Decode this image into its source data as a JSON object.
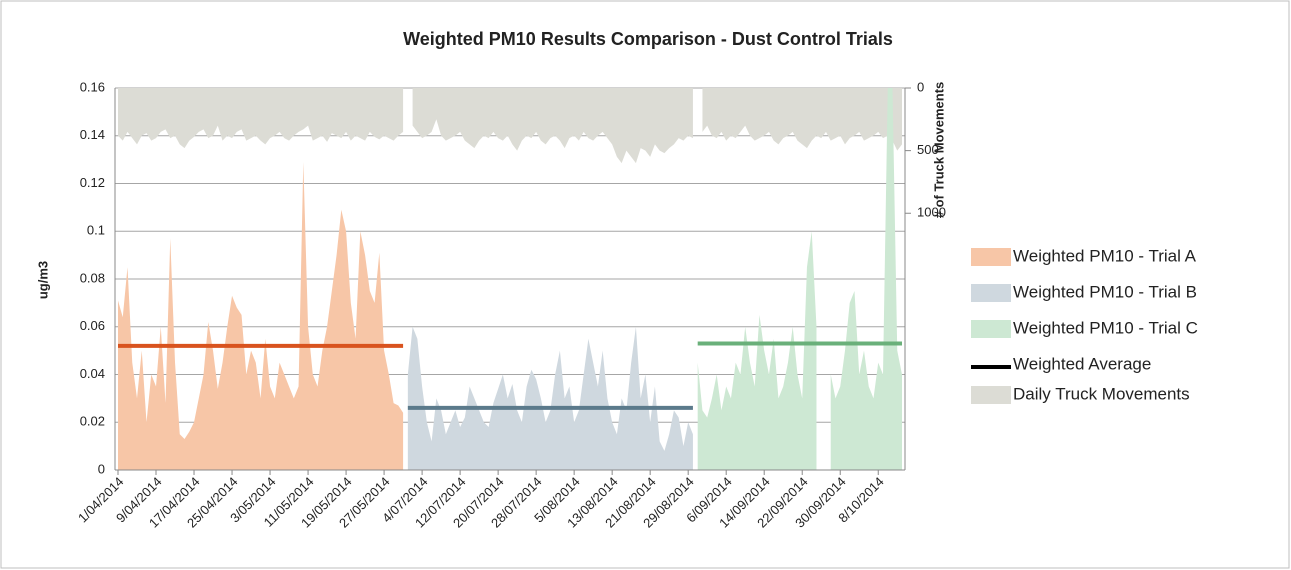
{
  "chart_data": {
    "type": "area",
    "title": "Weighted PM10 Results Comparison - Dust Control Trials",
    "ylabel": "ug/m3",
    "y2label": "# of Truck Movements",
    "ylim": [
      0,
      0.16
    ],
    "yticks": [
      0,
      0.02,
      0.04,
      0.06,
      0.08,
      0.1,
      0.12,
      0.14,
      0.16
    ],
    "y2lim": [
      0,
      3050
    ],
    "y2ticks": [
      0,
      500,
      1000
    ],
    "y2_reversed": true,
    "grid": true,
    "legend": "right",
    "categories": [
      "1/04/2014",
      null,
      null,
      null,
      null,
      null,
      null,
      null,
      "9/04/2014",
      null,
      null,
      null,
      null,
      null,
      null,
      null,
      "17/04/2014",
      null,
      null,
      null,
      null,
      null,
      null,
      null,
      "25/04/2014",
      null,
      null,
      null,
      null,
      null,
      null,
      null,
      "3/05/2014",
      null,
      null,
      null,
      null,
      null,
      null,
      null,
      "11/05/2014",
      null,
      null,
      null,
      null,
      null,
      null,
      null,
      "19/05/2014",
      null,
      null,
      null,
      null,
      null,
      null,
      null,
      "27/05/2014",
      null,
      null,
      null,
      null,
      null,
      null,
      null,
      "4/07/2014",
      null,
      null,
      null,
      null,
      null,
      null,
      null,
      "12/07/2014",
      null,
      null,
      null,
      null,
      null,
      null,
      null,
      "20/07/2014",
      null,
      null,
      null,
      null,
      null,
      null,
      null,
      "28/07/2014",
      null,
      null,
      null,
      null,
      null,
      null,
      null,
      "5/08/2014",
      null,
      null,
      null,
      null,
      null,
      null,
      null,
      "13/08/2014",
      null,
      null,
      null,
      null,
      null,
      null,
      null,
      "21/08/2014",
      null,
      null,
      null,
      null,
      null,
      null,
      null,
      "29/08/2014",
      null,
      null,
      null,
      null,
      null,
      null,
      null,
      "6/09/2014",
      null,
      null,
      null,
      null,
      null,
      null,
      null,
      "14/09/2014",
      null,
      null,
      null,
      null,
      null,
      null,
      null,
      "22/09/2014",
      null,
      null,
      null,
      null,
      null,
      null,
      null,
      "30/09/2014",
      null,
      null,
      null,
      null,
      null,
      null,
      null,
      "8/10/2014",
      null,
      null,
      null,
      null,
      null
    ],
    "average_legend": {
      "name": "Weighted Average",
      "color": "#000000"
    },
    "series": [
      {
        "name": "Weighted PM10 - Trial A",
        "color": "#f7c6a7",
        "average": 0.052,
        "average_color": "#d9531e",
        "values": [
          0.071,
          0.064,
          0.085,
          0.045,
          0.03,
          0.05,
          0.02,
          0.04,
          0.035,
          0.06,
          0.028,
          0.097,
          0.045,
          0.015,
          0.013,
          0.016,
          0.02,
          0.03,
          0.04,
          0.062,
          0.05,
          0.034,
          0.045,
          0.06,
          0.073,
          0.068,
          0.065,
          0.04,
          0.05,
          0.045,
          0.03,
          0.055,
          0.035,
          0.03,
          0.045,
          0.04,
          0.035,
          0.03,
          0.035,
          0.129,
          0.06,
          0.04,
          0.035,
          0.05,
          0.06,
          0.075,
          0.09,
          0.109,
          0.1,
          0.07,
          0.055,
          0.1,
          0.09,
          0.075,
          0.07,
          0.091,
          0.05,
          0.04,
          0.028,
          0.027,
          0.024,
          null,
          null,
          null,
          null,
          null,
          null,
          null,
          null,
          null,
          null,
          null,
          null,
          null,
          null,
          null,
          null,
          null,
          null,
          null,
          null,
          null,
          null,
          null,
          null,
          null,
          null,
          null,
          null,
          null,
          null,
          null,
          null,
          null,
          null,
          null,
          null,
          null,
          null,
          null,
          null,
          null,
          null,
          null,
          null,
          null,
          null,
          null,
          null,
          null,
          null,
          null,
          null,
          null,
          null,
          null,
          null,
          null,
          null,
          null,
          null,
          null,
          null,
          null,
          null,
          null,
          null,
          null,
          null,
          null,
          null,
          null,
          null,
          null,
          null,
          null,
          null,
          null,
          null,
          null,
          null,
          null,
          null,
          null,
          null,
          null,
          null,
          null,
          null,
          null,
          null,
          null,
          null,
          null,
          null,
          null,
          null,
          null,
          null,
          null,
          null,
          null,
          null,
          null,
          null,
          null
        ]
      },
      {
        "name": "Weighted PM10 - Trial B",
        "color": "#cfd8df",
        "average": 0.026,
        "average_color": "#5b7a8b",
        "values": [
          null,
          null,
          null,
          null,
          null,
          null,
          null,
          null,
          null,
          null,
          null,
          null,
          null,
          null,
          null,
          null,
          null,
          null,
          null,
          null,
          null,
          null,
          null,
          null,
          null,
          null,
          null,
          null,
          null,
          null,
          null,
          null,
          null,
          null,
          null,
          null,
          null,
          null,
          null,
          null,
          null,
          null,
          null,
          null,
          null,
          null,
          null,
          null,
          null,
          null,
          null,
          null,
          null,
          null,
          null,
          null,
          null,
          null,
          null,
          null,
          null,
          0.04,
          0.06,
          0.055,
          0.035,
          0.02,
          0.012,
          0.03,
          0.025,
          0.015,
          0.02,
          0.025,
          0.018,
          0.022,
          0.035,
          0.03,
          0.025,
          0.02,
          0.018,
          0.028,
          0.034,
          0.04,
          0.03,
          0.036,
          0.025,
          0.02,
          0.035,
          0.042,
          0.038,
          0.03,
          0.02,
          0.025,
          0.04,
          0.05,
          0.03,
          0.035,
          0.02,
          0.025,
          0.04,
          0.055,
          0.045,
          0.035,
          0.05,
          0.03,
          0.02,
          0.015,
          0.03,
          0.025,
          0.045,
          0.06,
          0.03,
          0.04,
          0.02,
          0.035,
          0.012,
          0.008,
          0.015,
          0.025,
          0.022,
          0.01,
          0.02,
          0.015,
          null,
          null,
          null,
          null,
          null,
          null,
          null,
          null,
          null,
          null,
          null,
          null,
          null,
          null,
          null,
          null,
          null,
          null,
          null,
          null,
          null,
          null,
          null,
          null,
          null,
          null,
          null,
          null,
          null,
          null,
          null,
          null,
          null,
          null,
          null,
          null,
          null,
          null,
          null,
          null,
          null,
          null,
          null,
          null
        ]
      },
      {
        "name": "Weighted PM10 - Trial C",
        "color": "#cde8d3",
        "average": 0.053,
        "average_color": "#6ab07a",
        "values": [
          null,
          null,
          null,
          null,
          null,
          null,
          null,
          null,
          null,
          null,
          null,
          null,
          null,
          null,
          null,
          null,
          null,
          null,
          null,
          null,
          null,
          null,
          null,
          null,
          null,
          null,
          null,
          null,
          null,
          null,
          null,
          null,
          null,
          null,
          null,
          null,
          null,
          null,
          null,
          null,
          null,
          null,
          null,
          null,
          null,
          null,
          null,
          null,
          null,
          null,
          null,
          null,
          null,
          null,
          null,
          null,
          null,
          null,
          null,
          null,
          null,
          null,
          null,
          null,
          null,
          null,
          null,
          null,
          null,
          null,
          null,
          null,
          null,
          null,
          null,
          null,
          null,
          null,
          null,
          null,
          null,
          null,
          null,
          null,
          null,
          null,
          null,
          null,
          null,
          null,
          null,
          null,
          null,
          null,
          null,
          null,
          null,
          null,
          null,
          null,
          null,
          null,
          null,
          null,
          null,
          null,
          null,
          null,
          null,
          null,
          null,
          null,
          null,
          null,
          null,
          null,
          null,
          null,
          null,
          null,
          null,
          null,
          0.045,
          0.025,
          0.022,
          0.03,
          0.04,
          0.025,
          0.035,
          0.03,
          0.045,
          0.04,
          0.06,
          0.045,
          0.035,
          0.065,
          0.05,
          0.04,
          0.055,
          0.03,
          0.035,
          0.045,
          0.06,
          0.04,
          0.03,
          0.085,
          0.1,
          0.06,
          null,
          null,
          0.04,
          0.03,
          0.035,
          0.05,
          0.07,
          0.075,
          0.04,
          0.05,
          0.035,
          0.03,
          0.045,
          0.04,
          0.16,
          0.16,
          0.05,
          0.04
        ]
      },
      {
        "name": "Daily Truck Movements",
        "color": "#dcdcd5",
        "axis": "y2",
        "values": [
          380,
          420,
          350,
          400,
          450,
          380,
          360,
          420,
          400,
          350,
          330,
          400,
          380,
          450,
          480,
          420,
          390,
          350,
          330,
          400,
          380,
          300,
          420,
          380,
          400,
          350,
          330,
          420,
          400,
          380,
          420,
          450,
          400,
          380,
          350,
          400,
          420,
          380,
          350,
          330,
          300,
          420,
          400,
          380,
          430,
          360,
          380,
          400,
          350,
          420,
          380,
          400,
          420,
          350,
          390,
          410,
          380,
          400,
          420,
          380,
          350,
          null,
          300,
          350,
          400,
          380,
          350,
          250,
          380,
          420,
          400,
          380,
          350,
          420,
          450,
          480,
          420,
          380,
          400,
          350,
          400,
          420,
          380,
          450,
          500,
          420,
          380,
          400,
          350,
          420,
          450,
          400,
          380,
          420,
          480,
          400,
          380,
          420,
          350,
          400,
          420,
          380,
          350,
          400,
          450,
          550,
          600,
          500,
          550,
          600,
          480,
          500,
          550,
          450,
          500,
          520,
          480,
          450,
          400,
          420,
          380,
          400,
          null,
          350,
          300,
          380,
          400,
          350,
          420,
          380,
          400,
          350,
          300,
          380,
          420,
          400,
          380,
          350,
          420,
          450,
          400,
          380,
          350,
          420,
          450,
          480,
          420,
          380,
          400,
          350,
          420,
          400,
          380,
          450,
          400,
          380,
          350,
          420,
          400,
          380,
          350,
          400,
          380,
          420,
          500,
          450
        ]
      }
    ]
  }
}
